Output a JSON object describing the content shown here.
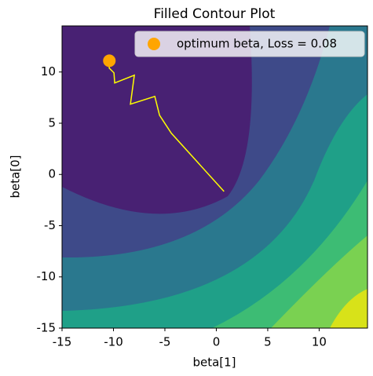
{
  "chart_data": {
    "type": "contour",
    "title": "Filled Contour Plot",
    "xlabel": "beta[1]",
    "ylabel": "beta[0]",
    "xlim": [
      -15,
      14.7
    ],
    "ylim": [
      -15,
      14.5
    ],
    "xticks": [
      -15,
      -10,
      -5,
      0,
      5,
      10
    ],
    "yticks": [
      -15,
      -10,
      -5,
      0,
      5,
      10
    ],
    "legend": "upper right",
    "series": [
      {
        "type": "line",
        "color": "yellow",
        "x": [
          0.75,
          -4.37,
          -5.52,
          -5.98,
          -8.35,
          -7.97,
          -9.88,
          -9.95,
          -10.41,
          -10.41
        ],
        "values": [
          -1.66,
          4.02,
          5.78,
          7.62,
          6.86,
          9.69,
          8.93,
          9.92,
          10.38,
          11.07
        ]
      },
      {
        "type": "scatter",
        "name": "optimum beta, Loss = 0.08",
        "color": "orange",
        "x": [
          -10.4
        ],
        "values": [
          11.1
        ]
      }
    ]
  }
}
